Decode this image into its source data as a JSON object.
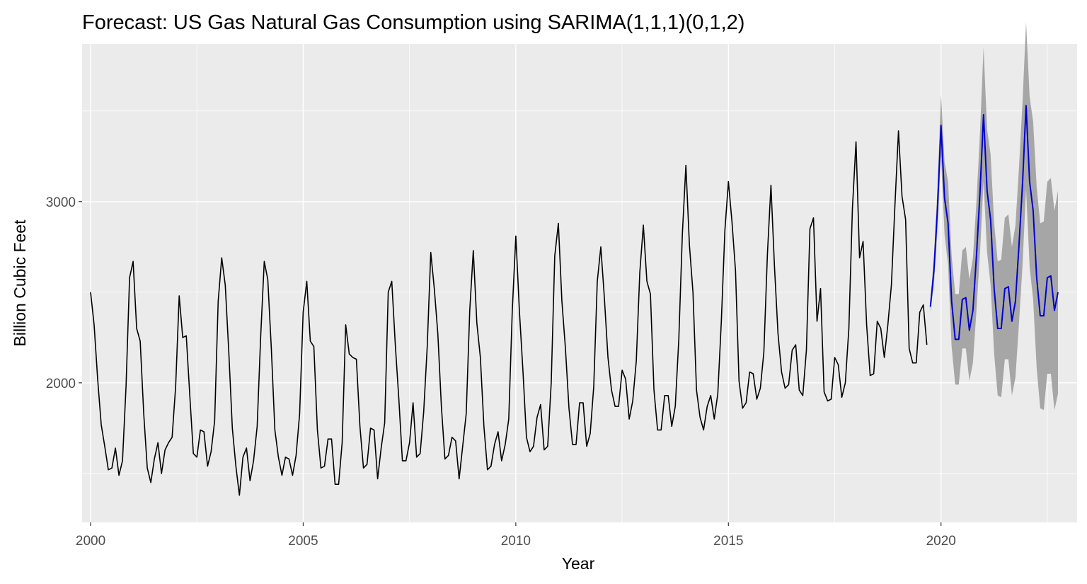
{
  "chart_data": {
    "type": "line",
    "title": "Forecast: US Gas Natural Gas Consumption using SARIMA(1,1,1)(0,1,2)",
    "xlabel": "Year",
    "ylabel": "Billion Cubic Feet",
    "xlim": [
      1999.8,
      2023.2
    ],
    "ylim": [
      1230,
      3870
    ],
    "x_ticks": [
      2000,
      2005,
      2010,
      2015,
      2020
    ],
    "y_ticks": [
      2000,
      3000
    ],
    "grid": true,
    "colors": {
      "panel": "#ebebeb",
      "observed": "#000000",
      "forecast": "#0000cc",
      "interval": "#a6a6a6"
    },
    "series": [
      {
        "start": 2000,
        "step": 0.0833333,
        "values": [
          2500,
          2320,
          2020,
          1770,
          1650,
          1520,
          1530,
          1640,
          1490,
          1570,
          1980,
          2580,
          2670,
          2300,
          2230,
          1830,
          1530,
          1450,
          1580,
          1670,
          1500,
          1630,
          1670,
          1700,
          1980,
          2480,
          2250,
          2260,
          1930,
          1610,
          1590,
          1740,
          1730,
          1540,
          1620,
          1790,
          2450,
          2690,
          2540,
          2170,
          1750,
          1540,
          1380,
          1590,
          1640,
          1460,
          1570,
          1760,
          2260,
          2670,
          2570,
          2190,
          1740,
          1590,
          1490,
          1590,
          1580,
          1490,
          1600,
          1830,
          2390,
          2560,
          2230,
          2200,
          1740,
          1530,
          1540,
          1690,
          1690,
          1440,
          1440,
          1670,
          2320,
          2160,
          2140,
          2130,
          1760,
          1530,
          1550,
          1750,
          1740,
          1470,
          1640,
          1780,
          2500,
          2560,
          2210,
          1910,
          1570,
          1570,
          1670,
          1890,
          1590,
          1610,
          1840,
          2200,
          2720,
          2520,
          2270,
          1870,
          1580,
          1600,
          1700,
          1680,
          1470,
          1650,
          1830,
          2400,
          2730,
          2330,
          2140,
          1760,
          1520,
          1540,
          1660,
          1730,
          1570,
          1660,
          1800,
          2400,
          2810,
          2400,
          2070,
          1700,
          1620,
          1650,
          1810,
          1880,
          1630,
          1650,
          2000,
          2700,
          2880,
          2450,
          2190,
          1860,
          1660,
          1660,
          1890,
          1890,
          1650,
          1720,
          1980,
          2560,
          2750,
          2470,
          2140,
          1960,
          1870,
          1870,
          2070,
          2020,
          1800,
          1900,
          2120,
          2610,
          2870,
          2560,
          2490,
          1960,
          1740,
          1740,
          1930,
          1930,
          1760,
          1870,
          2240,
          2820,
          3200,
          2760,
          2500,
          1960,
          1810,
          1740,
          1870,
          1930,
          1800,
          1940,
          2340,
          2840,
          3110,
          2890,
          2620,
          2010,
          1860,
          1890,
          2060,
          2050,
          1910,
          1970,
          2170,
          2710,
          3090,
          2640,
          2270,
          2060,
          1970,
          1990,
          2180,
          2210,
          1960,
          1930,
          2180,
          2850,
          2910,
          2340,
          2520,
          1950,
          1900,
          1910,
          2140,
          2100,
          1920,
          2000,
          2300,
          2960,
          3330,
          2690,
          2780,
          2320,
          2040,
          2050,
          2340,
          2300,
          2140,
          2320,
          2540,
          2980,
          3390,
          3030,
          2900,
          2190,
          2110,
          2110,
          2390,
          2430,
          2210
        ]
      },
      {
        "start": 2019.75,
        "step": 0.0833333,
        "values": [
          2420,
          2620,
          2960,
          3420,
          3020,
          2880,
          2450,
          2240,
          2240,
          2460,
          2470,
          2290,
          2400,
          2700,
          3050,
          3480,
          3060,
          2900,
          2520,
          2300,
          2300,
          2520,
          2530,
          2340,
          2450,
          2760,
          3100,
          3530,
          3110,
          2950,
          2580,
          2370,
          2370,
          2580,
          2590,
          2400,
          2500
        ],
        "upper": [
          2450,
          2700,
          3080,
          3590,
          3220,
          3110,
          2700,
          2490,
          2490,
          2730,
          2750,
          2570,
          2690,
          3000,
          3380,
          3850,
          3400,
          3260,
          2880,
          2670,
          2680,
          2910,
          2930,
          2750,
          2870,
          3190,
          3550,
          3990,
          3580,
          3440,
          3080,
          2880,
          2890,
          3110,
          3130,
          2950,
          3060
        ],
        "lower": [
          2390,
          2540,
          2840,
          3250,
          2820,
          2650,
          2200,
          1990,
          1990,
          2190,
          2190,
          2010,
          2110,
          2400,
          2720,
          3110,
          2720,
          2540,
          2160,
          1930,
          1920,
          2130,
          2130,
          1930,
          2030,
          2330,
          2650,
          3070,
          2640,
          2460,
          2080,
          1860,
          1850,
          2050,
          2050,
          1850,
          1940
        ]
      }
    ]
  }
}
